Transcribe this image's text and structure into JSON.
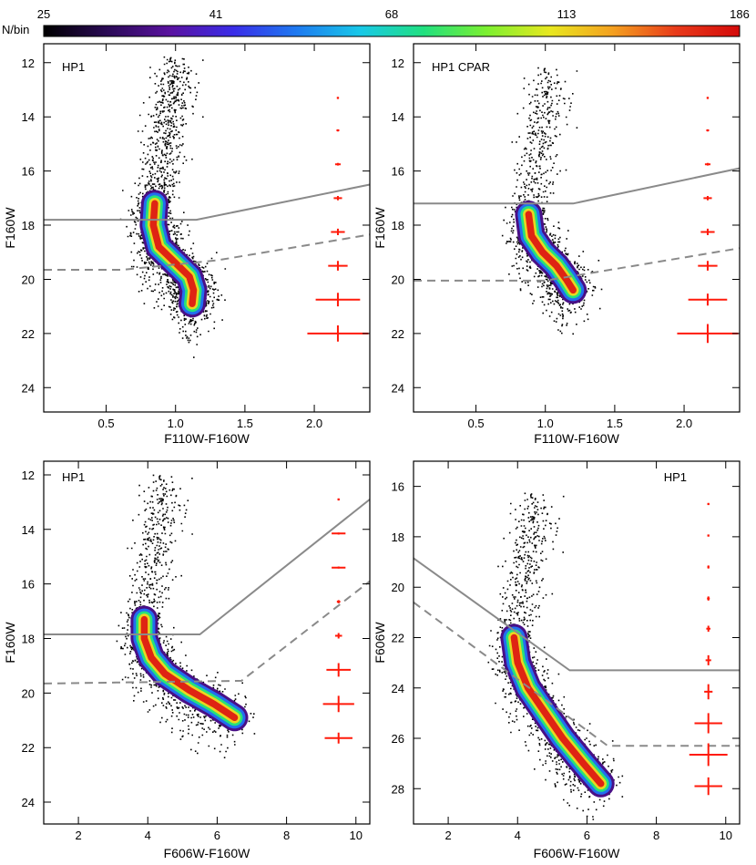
{
  "colorbar": {
    "label": "N/bin",
    "tick_labels": [
      "25",
      "41",
      "68",
      "113",
      "186"
    ],
    "colors": [
      "#000000",
      "#2a0a55",
      "#5a12a0",
      "#3a2ce8",
      "#1e7af0",
      "#18c8e8",
      "#20e080",
      "#7cf030",
      "#e8e820",
      "#f4a020",
      "#e83a1a",
      "#d40a0a"
    ]
  },
  "chart_data": [
    {
      "type": "scatter",
      "subtype": "hess-density-cmd",
      "title": "HP1",
      "xlabel": "F110W-F160W",
      "ylabel": "F160W",
      "xlim": [
        0.05,
        2.4
      ],
      "ylim": [
        24.9,
        11.3
      ],
      "xticks": [
        0.5,
        1.0,
        1.5,
        2.0
      ],
      "xtick_labels": [
        "0.5",
        "1.0",
        "1.5",
        "2.0"
      ],
      "yticks": [
        12,
        14,
        16,
        18,
        20,
        22,
        24
      ],
      "ytick_labels": [
        "12",
        "14",
        "16",
        "18",
        "20",
        "22",
        "24"
      ],
      "ridge": [
        [
          0.85,
          17.2
        ],
        [
          0.84,
          18.0
        ],
        [
          0.88,
          18.8
        ],
        [
          1.0,
          19.4
        ],
        [
          1.1,
          19.9
        ],
        [
          1.13,
          20.4
        ],
        [
          1.12,
          20.9
        ]
      ],
      "solid_line": [
        [
          0.05,
          17.8
        ],
        [
          1.15,
          17.8
        ],
        [
          2.4,
          16.5
        ]
      ],
      "dashed_line": [
        [
          0.05,
          19.65
        ],
        [
          0.62,
          19.65
        ],
        [
          1.3,
          19.3
        ],
        [
          2.4,
          18.35
        ]
      ],
      "error_bars": [
        {
          "x": 2.17,
          "y": 13.3,
          "xerr": 0.005,
          "yerr": 0.02
        },
        {
          "x": 2.17,
          "y": 14.5,
          "xerr": 0.01,
          "yerr": 0.03
        },
        {
          "x": 2.17,
          "y": 15.75,
          "xerr": 0.02,
          "yerr": 0.05
        },
        {
          "x": 2.17,
          "y": 17.0,
          "xerr": 0.03,
          "yerr": 0.08
        },
        {
          "x": 2.17,
          "y": 18.25,
          "xerr": 0.05,
          "yerr": 0.12
        },
        {
          "x": 2.17,
          "y": 19.5,
          "xerr": 0.07,
          "yerr": 0.18
        },
        {
          "x": 2.17,
          "y": 20.75,
          "xerr": 0.16,
          "yerr": 0.25
        },
        {
          "x": 2.17,
          "y": 22.0,
          "xerr": 0.22,
          "yerr": 0.3
        }
      ]
    },
    {
      "type": "scatter",
      "subtype": "hess-density-cmd",
      "title": "HP1 CPAR",
      "xlabel": "F110W-F160W",
      "ylabel": "F160W",
      "xlim": [
        0.05,
        2.4
      ],
      "ylim": [
        24.9,
        11.3
      ],
      "xticks": [
        0.5,
        1.0,
        1.5,
        2.0
      ],
      "xtick_labels": [
        "0.5",
        "1.0",
        "1.5",
        "2.0"
      ],
      "yticks": [
        12,
        14,
        16,
        18,
        20,
        22,
        24
      ],
      "ytick_labels": [
        "12",
        "14",
        "16",
        "18",
        "20",
        "22",
        "24"
      ],
      "ridge": [
        [
          0.88,
          17.6
        ],
        [
          0.9,
          18.4
        ],
        [
          0.98,
          19.0
        ],
        [
          1.08,
          19.5
        ],
        [
          1.15,
          20.0
        ],
        [
          1.2,
          20.4
        ]
      ],
      "solid_line": [
        [
          0.05,
          17.2
        ],
        [
          1.2,
          17.2
        ],
        [
          2.4,
          15.9
        ]
      ],
      "dashed_line": [
        [
          0.05,
          20.05
        ],
        [
          1.0,
          20.05
        ],
        [
          2.4,
          18.85
        ]
      ],
      "error_bars": [
        {
          "x": 2.17,
          "y": 13.3,
          "xerr": 0.005,
          "yerr": 0.02
        },
        {
          "x": 2.17,
          "y": 14.5,
          "xerr": 0.01,
          "yerr": 0.03
        },
        {
          "x": 2.17,
          "y": 15.75,
          "xerr": 0.02,
          "yerr": 0.05
        },
        {
          "x": 2.17,
          "y": 17.0,
          "xerr": 0.03,
          "yerr": 0.08
        },
        {
          "x": 2.17,
          "y": 18.25,
          "xerr": 0.05,
          "yerr": 0.12
        },
        {
          "x": 2.17,
          "y": 19.5,
          "xerr": 0.07,
          "yerr": 0.18
        },
        {
          "x": 2.17,
          "y": 20.75,
          "xerr": 0.14,
          "yerr": 0.22
        },
        {
          "x": 2.17,
          "y": 22.0,
          "xerr": 0.22,
          "yerr": 0.35
        }
      ]
    },
    {
      "type": "scatter",
      "subtype": "hess-density-cmd",
      "title": "HP1",
      "xlabel": "F606W-F160W",
      "ylabel": "F160W",
      "xlim": [
        1.0,
        10.4
      ],
      "ylim": [
        24.8,
        11.5
      ],
      "xticks": [
        2,
        4,
        6,
        8,
        10
      ],
      "xtick_labels": [
        "2",
        "4",
        "6",
        "8",
        "10"
      ],
      "yticks": [
        12,
        14,
        16,
        18,
        20,
        22,
        24
      ],
      "ytick_labels": [
        "12",
        "14",
        "16",
        "18",
        "20",
        "22",
        "24"
      ],
      "ridge": [
        [
          3.9,
          17.3
        ],
        [
          3.9,
          18.0
        ],
        [
          4.1,
          18.7
        ],
        [
          4.5,
          19.3
        ],
        [
          5.2,
          19.9
        ],
        [
          5.9,
          20.4
        ],
        [
          6.5,
          20.9
        ]
      ],
      "solid_line": [
        [
          1.0,
          17.85
        ],
        [
          5.5,
          17.85
        ],
        [
          10.4,
          12.9
        ]
      ],
      "dashed_line": [
        [
          1.0,
          19.65
        ],
        [
          6.7,
          19.55
        ],
        [
          10.4,
          15.9
        ]
      ],
      "error_bars": [
        {
          "x": 9.5,
          "y": 12.9,
          "xerr": 0.01,
          "yerr": 0.02
        },
        {
          "x": 9.5,
          "y": 14.15,
          "xerr": 0.2,
          "yerr": 0.02
        },
        {
          "x": 9.5,
          "y": 15.4,
          "xerr": 0.2,
          "yerr": 0.03
        },
        {
          "x": 9.5,
          "y": 16.65,
          "xerr": 0.05,
          "yerr": 0.06
        },
        {
          "x": 9.5,
          "y": 17.9,
          "xerr": 0.1,
          "yerr": 0.1
        },
        {
          "x": 9.5,
          "y": 19.15,
          "xerr": 0.35,
          "yerr": 0.25
        },
        {
          "x": 9.5,
          "y": 20.4,
          "xerr": 0.45,
          "yerr": 0.3
        },
        {
          "x": 9.5,
          "y": 21.65,
          "xerr": 0.4,
          "yerr": 0.2
        }
      ]
    },
    {
      "type": "scatter",
      "subtype": "hess-density-cmd",
      "title": "HP1",
      "xlabel": "F606W-F160W",
      "ylabel": "F606W",
      "xlim": [
        1.0,
        10.4
      ],
      "ylim": [
        29.4,
        15.0
      ],
      "xticks": [
        2,
        4,
        6,
        8,
        10
      ],
      "xtick_labels": [
        "2",
        "4",
        "6",
        "8",
        "10"
      ],
      "yticks": [
        16,
        18,
        20,
        22,
        24,
        26,
        28
      ],
      "ytick_labels": [
        "16",
        "18",
        "20",
        "22",
        "24",
        "26",
        "28"
      ],
      "ridge": [
        [
          3.9,
          22.0
        ],
        [
          4.0,
          23.0
        ],
        [
          4.3,
          24.0
        ],
        [
          4.8,
          25.0
        ],
        [
          5.3,
          26.0
        ],
        [
          5.9,
          27.0
        ],
        [
          6.4,
          27.8
        ]
      ],
      "solid_line": [
        [
          1.0,
          18.85
        ],
        [
          5.5,
          23.3
        ],
        [
          10.4,
          23.3
        ]
      ],
      "dashed_line": [
        [
          1.0,
          20.6
        ],
        [
          6.6,
          26.3
        ],
        [
          10.4,
          26.3
        ]
      ],
      "error_bars": [
        {
          "x": 9.5,
          "y": 16.7,
          "xerr": 0.01,
          "yerr": 0.03
        },
        {
          "x": 9.5,
          "y": 17.95,
          "xerr": 0.02,
          "yerr": 0.04
        },
        {
          "x": 9.5,
          "y": 19.2,
          "xerr": 0.03,
          "yerr": 0.06
        },
        {
          "x": 9.5,
          "y": 20.45,
          "xerr": 0.04,
          "yerr": 0.08
        },
        {
          "x": 9.5,
          "y": 21.65,
          "xerr": 0.06,
          "yerr": 0.12
        },
        {
          "x": 9.5,
          "y": 22.9,
          "xerr": 0.08,
          "yerr": 0.2
        },
        {
          "x": 9.5,
          "y": 24.15,
          "xerr": 0.12,
          "yerr": 0.3
        },
        {
          "x": 9.5,
          "y": 25.4,
          "xerr": 0.4,
          "yerr": 0.4
        },
        {
          "x": 9.5,
          "y": 26.65,
          "xerr": 0.55,
          "yerr": 0.45
        },
        {
          "x": 9.5,
          "y": 27.9,
          "xerr": 0.4,
          "yerr": 0.35
        }
      ]
    }
  ]
}
